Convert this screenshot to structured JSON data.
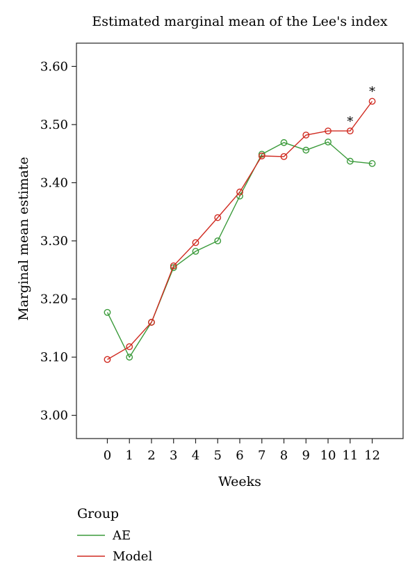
{
  "chart_data": {
    "type": "line",
    "title": "Estimated marginal mean of the Lee's index",
    "xlabel": "Weeks",
    "ylabel": "Marginal mean estimate",
    "x": [
      0,
      1,
      2,
      3,
      4,
      5,
      6,
      7,
      8,
      9,
      10,
      11,
      12
    ],
    "x_tick_labels": [
      "0",
      "1",
      "2",
      "3",
      "4",
      "5",
      "6",
      "7",
      "8",
      "9",
      "10",
      "11",
      "12"
    ],
    "xlim": [
      -1.4,
      13.4
    ],
    "ylim": [
      2.96,
      3.64
    ],
    "y_ticks": [
      3.0,
      3.1,
      3.2,
      3.3,
      3.4,
      3.5,
      3.6
    ],
    "y_tick_labels": [
      "3.00",
      "3.10",
      "3.20",
      "3.30",
      "3.40",
      "3.50",
      "3.60"
    ],
    "grid": false,
    "legend": {
      "title": "Group",
      "placement": "bottom-left"
    },
    "series": [
      {
        "name": "AE",
        "color": "#3a9a3a",
        "values": [
          3.177,
          3.1,
          3.16,
          3.254,
          3.282,
          3.3,
          3.377,
          3.449,
          3.469,
          3.456,
          3.47,
          3.437,
          3.433
        ]
      },
      {
        "name": "Model",
        "color": "#d02a20",
        "values": [
          3.096,
          3.118,
          3.16,
          3.257,
          3.297,
          3.34,
          3.384,
          3.446,
          3.445,
          3.482,
          3.489,
          3.489,
          3.54
        ]
      }
    ],
    "annotations": [
      {
        "text": "*",
        "x": 11,
        "y": 3.508
      },
      {
        "text": "*",
        "x": 12,
        "y": 3.559
      }
    ]
  }
}
